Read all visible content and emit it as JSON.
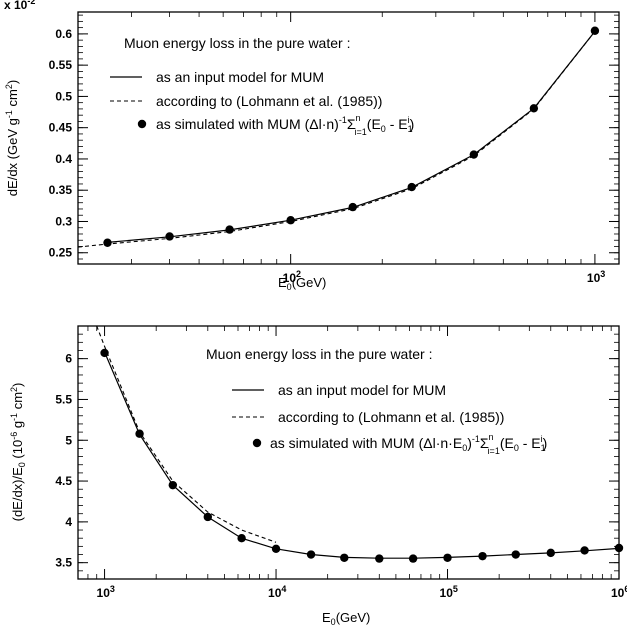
{
  "chart_data": [
    {
      "type": "line",
      "multiplier_label": "x 10",
      "multiplier_exp": "-2",
      "xscale": "log",
      "xlim": [
        20,
        1200
      ],
      "ylim": [
        0.232,
        0.635
      ],
      "xticks": [
        {
          "v": 100,
          "base": "10",
          "exp": "2"
        },
        {
          "v": 1000,
          "base": "10",
          "exp": "3"
        }
      ],
      "yticks": [
        0.25,
        0.3,
        0.35,
        0.4,
        0.45,
        0.5,
        0.55,
        0.6
      ],
      "yticklabels": [
        "0.25",
        "0.3",
        "0.35",
        "0.4",
        "0.45",
        "0.5",
        "0.55",
        "0.6"
      ],
      "xlabel": {
        "main": "E",
        "sub": "0",
        "tail": "(GeV)"
      },
      "ylabel": {
        "pre": "dE/dx (GeV g",
        "s1": "-1",
        "mid": " cm",
        "s2": "2",
        "post": ")"
      },
      "legend": {
        "title": "Muon energy loss in the pure water :",
        "solid": "as an input model for MUM",
        "dashed": "according to (Lohmann et al. (1985))",
        "points_pre": "as simulated with MUM (",
        "points_formula": "Δl·n)",
        "points_exp": "-1",
        "points_sum": "Σ",
        "points_sum_top": "n",
        "points_sum_bot": "i=1",
        "points_tail": "(E",
        "points_tail_sub1": "0",
        "points_tail_mid": " - E",
        "points_tail_sub2": "1",
        "points_tail_sup2": "i",
        "points_end": ")"
      },
      "series": [
        {
          "style": "solid",
          "x": [
            25,
            40,
            63,
            100,
            160,
            250,
            400,
            630,
            1000
          ],
          "y": [
            0.2665,
            0.2755,
            0.2865,
            0.302,
            0.3225,
            0.3545,
            0.407,
            0.481,
            0.604
          ]
        },
        {
          "style": "dashed",
          "x": [
            20,
            25,
            40,
            63,
            100,
            160,
            250,
            400,
            630,
            1000
          ],
          "y": [
            0.259,
            0.264,
            0.273,
            0.284,
            0.3,
            0.3205,
            0.3525,
            0.405,
            0.48,
            0.604
          ]
        },
        {
          "style": "points",
          "x": [
            25,
            40,
            63,
            100,
            160,
            250,
            400,
            630,
            1000
          ],
          "y": [
            0.266,
            0.276,
            0.287,
            0.302,
            0.323,
            0.355,
            0.407,
            0.481,
            0.605
          ]
        }
      ]
    },
    {
      "type": "line",
      "xscale": "log",
      "xlim": [
        700,
        1000000
      ],
      "ylim": [
        3.3,
        6.4
      ],
      "xticks": [
        {
          "v": 1000,
          "base": "10",
          "exp": "3"
        },
        {
          "v": 10000,
          "base": "10",
          "exp": "4"
        },
        {
          "v": 100000,
          "base": "10",
          "exp": "5"
        },
        {
          "v": 1000000,
          "base": "10",
          "exp": "6"
        }
      ],
      "yticks": [
        3.5,
        4,
        4.5,
        5,
        5.5,
        6
      ],
      "yticklabels": [
        "3.5",
        "4",
        "4.5",
        "5",
        "5.5",
        "6"
      ],
      "xlabel": {
        "main": "E",
        "sub": "0",
        "tail": "(GeV)"
      },
      "ylabel": {
        "pre": "(dE/dx)/E",
        "sub0": "0",
        "mid1": " (10",
        "s1": "-6",
        "mid2": " g",
        "s2": "-1",
        "mid3": " cm",
        "s3": "2",
        "post": ")"
      },
      "legend": {
        "title": "Muon energy loss in the pure water :",
        "solid": "as an input model for MUM",
        "dashed": "according to (Lohmann et al. (1985))",
        "points_pre": "as simulated with MUM (",
        "points_formula": "Δl·n·E",
        "points_formula_sub": "0",
        "points_close": ")",
        "points_exp": "-1",
        "points_sum": "Σ",
        "points_sum_top": "n",
        "points_sum_bot": "i=1",
        "points_tail": "(E",
        "points_tail_sub1": "0",
        "points_tail_mid": " - E",
        "points_tail_sub2": "1",
        "points_tail_sup2": "i",
        "points_end": ")"
      },
      "series": [
        {
          "style": "solid",
          "x": [
            1000,
            1600,
            2500,
            4000,
            6300,
            10000,
            16000,
            25000,
            40000,
            63000,
            100000,
            160000,
            250000,
            400000,
            630000,
            1000000
          ],
          "y": [
            6.08,
            5.07,
            4.45,
            4.06,
            3.8,
            3.67,
            3.6,
            3.565,
            3.555,
            3.555,
            3.565,
            3.58,
            3.6,
            3.62,
            3.645,
            3.675
          ]
        },
        {
          "style": "dashed",
          "x": [
            900,
            1000,
            1600,
            2500,
            4000,
            6300,
            10000
          ],
          "y": [
            6.4,
            6.15,
            5.1,
            4.5,
            4.12,
            3.9,
            3.75
          ]
        },
        {
          "style": "points",
          "x": [
            1000,
            1600,
            2500,
            4000,
            6300,
            10000,
            16000,
            25000,
            40000,
            63000,
            100000,
            160000,
            250000,
            400000,
            630000,
            1000000
          ],
          "y": [
            6.07,
            5.08,
            4.45,
            4.06,
            3.8,
            3.67,
            3.6,
            3.56,
            3.55,
            3.55,
            3.56,
            3.58,
            3.6,
            3.62,
            3.65,
            3.68
          ]
        }
      ]
    }
  ]
}
